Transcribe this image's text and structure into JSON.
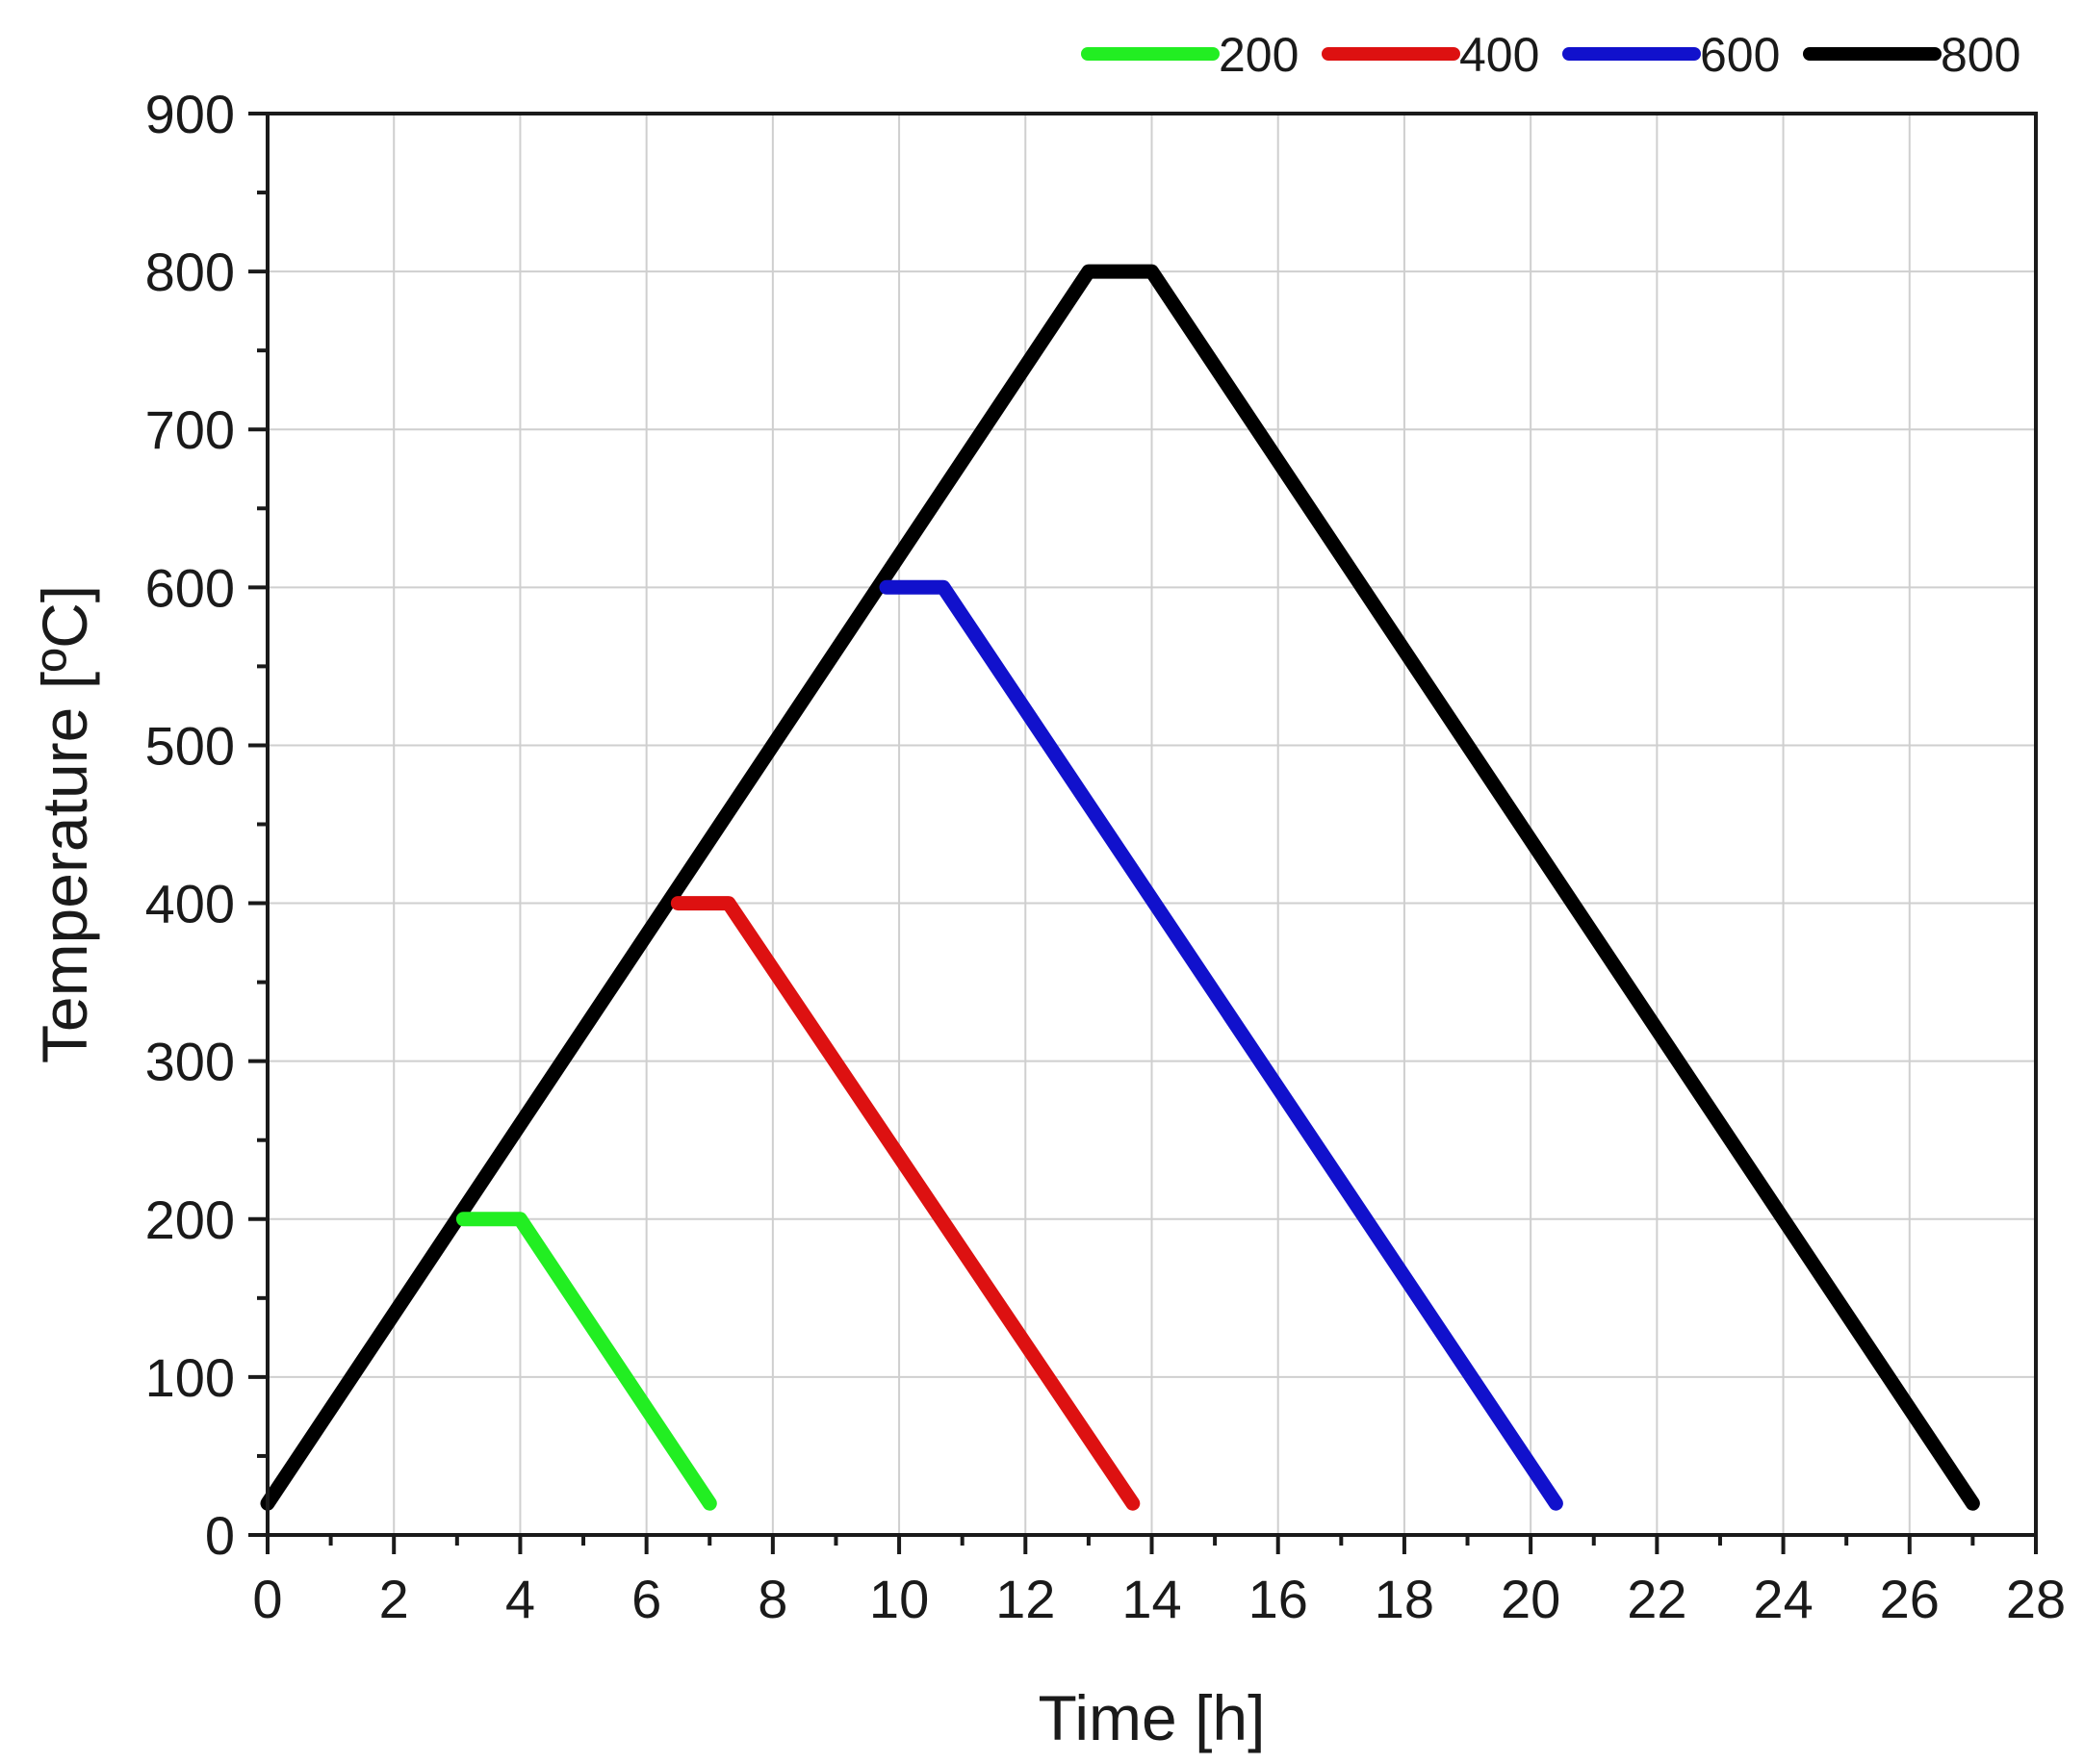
{
  "chart_data": {
    "type": "line",
    "title": "",
    "xlabel": "Time [h]",
    "ylabel": "Temperature [ºC]",
    "xlim": [
      0,
      28
    ],
    "ylim": [
      0,
      900
    ],
    "x_ticks": [
      "0",
      "2",
      "4",
      "6",
      "8",
      "10",
      "12",
      "14",
      "16",
      "18",
      "20",
      "22",
      "24",
      "26",
      "28"
    ],
    "y_ticks": [
      "0",
      "100",
      "200",
      "300",
      "400",
      "500",
      "600",
      "700",
      "800",
      "900"
    ],
    "x_tick_values": [
      0,
      2,
      4,
      6,
      8,
      10,
      12,
      14,
      16,
      18,
      20,
      22,
      24,
      26,
      28
    ],
    "y_tick_values": [
      0,
      100,
      200,
      300,
      400,
      500,
      600,
      700,
      800,
      900
    ],
    "grid": true,
    "legend_position": "top-right, above plot",
    "series": [
      {
        "name": "200",
        "color": "#22ee22",
        "x": [
          3.1,
          4.0,
          7.0
        ],
        "y": [
          200,
          200,
          20
        ]
      },
      {
        "name": "400",
        "color": "#dd1111",
        "x": [
          6.5,
          7.3,
          13.7
        ],
        "y": [
          400,
          400,
          20
        ]
      },
      {
        "name": "600",
        "color": "#1111cc",
        "x": [
          9.8,
          10.7,
          20.4
        ],
        "y": [
          600,
          600,
          20
        ]
      },
      {
        "name": "800",
        "color": "#000000",
        "x": [
          0,
          13.0,
          14.0,
          27.0
        ],
        "y": [
          20,
          800,
          800,
          20
        ]
      }
    ]
  }
}
